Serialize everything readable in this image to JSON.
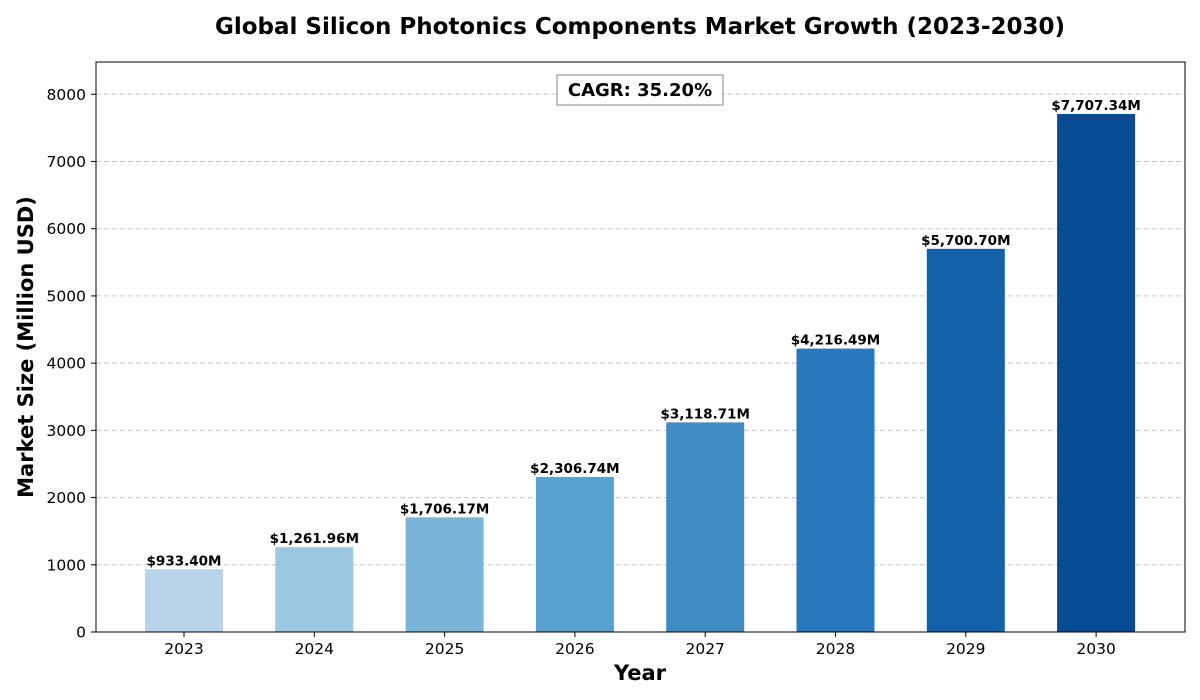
{
  "chart_data": {
    "type": "bar",
    "title": "Global Silicon Photonics Components Market Growth (2023-2030)",
    "xlabel": "Year",
    "ylabel": "Market Size (Million USD)",
    "categories": [
      "2023",
      "2024",
      "2025",
      "2026",
      "2027",
      "2028",
      "2029",
      "2030"
    ],
    "values": [
      933.4,
      1261.96,
      1706.17,
      2306.74,
      3118.71,
      4216.49,
      5700.7,
      7707.34
    ],
    "data_labels": [
      "$933.40M",
      "$1,261.96M",
      "$1,706.17M",
      "$2,306.74M",
      "$3,118.71M",
      "$4,216.49M",
      "$5,700.70M",
      "$7,707.34M"
    ],
    "colors": [
      "#b9d4ea",
      "#9bc7e0",
      "#79b5d9",
      "#5aa1cf",
      "#3f8cc5",
      "#2878bb",
      "#1461aa",
      "#084b92"
    ],
    "ylim": [
      0,
      8480
    ],
    "yticks": [
      0,
      1000,
      2000,
      3000,
      4000,
      5000,
      6000,
      7000,
      8000
    ],
    "grid": true,
    "annotation": "CAGR: 35.20%",
    "legend": "none"
  }
}
